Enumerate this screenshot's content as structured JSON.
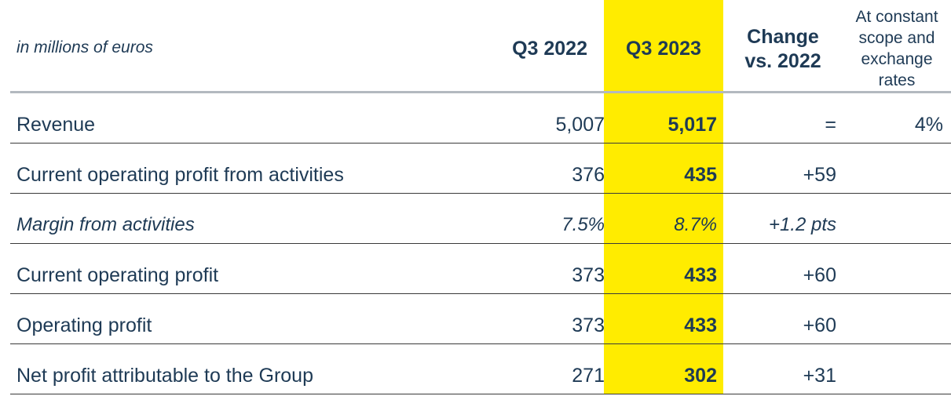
{
  "header": {
    "unit_label": "in millions of euros",
    "col_q3_2022": "Q3 2022",
    "col_q3_2023": "Q3 2023",
    "col_change_line1": "Change",
    "col_change_line2": "vs. 2022",
    "col_constant_lines": [
      "At constant",
      "scope and",
      "exchange",
      "rates"
    ]
  },
  "rows": [
    {
      "label": "Revenue",
      "q3_2022": "5,007",
      "q3_2023": "5,017",
      "change": "=",
      "constant": "4%",
      "italic": false
    },
    {
      "label": "Current operating profit from activities",
      "q3_2022": "376",
      "q3_2023": "435",
      "change": "+59",
      "constant": "",
      "italic": false
    },
    {
      "label": "Margin from activities",
      "q3_2022": "7.5%",
      "q3_2023": "8.7%",
      "change": "+1.2 pts",
      "constant": "",
      "italic": true
    },
    {
      "label": "Current operating profit",
      "q3_2022": "373",
      "q3_2023": "433",
      "change": "+60",
      "constant": "",
      "italic": false
    },
    {
      "label": "Operating profit",
      "q3_2022": "373",
      "q3_2023": "433",
      "change": "+60",
      "constant": "",
      "italic": false
    },
    {
      "label": "Net profit attributable to the Group",
      "q3_2022": "271",
      "q3_2023": "302",
      "change": "+31",
      "constant": "",
      "italic": false
    }
  ],
  "colors": {
    "text": "#1e3a55",
    "highlight": "#ffec00",
    "header_rule": "#b3b9bf",
    "row_rule": "#3a3a3a"
  }
}
